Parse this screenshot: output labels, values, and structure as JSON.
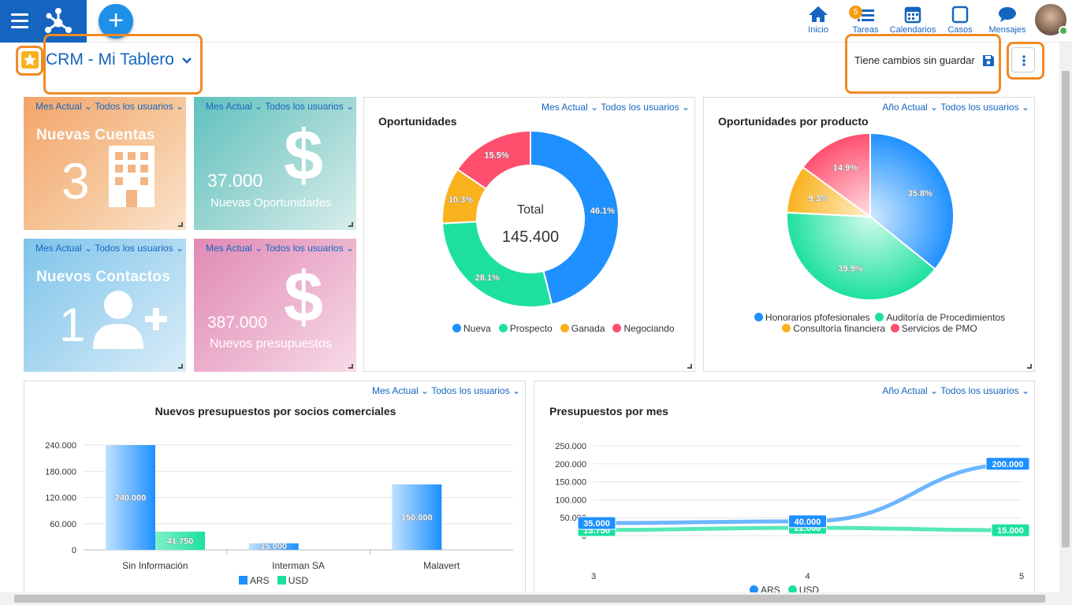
{
  "nav": {
    "home_label": "Inicio",
    "tasks_label": "Tareas",
    "tasks_badge": "5",
    "calendars_label": "Calendarios",
    "cases_label": "Casos",
    "messages_label": "Mensajes",
    "add_label": "+"
  },
  "header": {
    "title": "CRM - Mi Tablero",
    "unsaved_text": "Tiene cambios sin guardar"
  },
  "tiles": [
    {
      "period": "Mes Actual",
      "users": "Todos los usuarios",
      "title": "Nuevas Cuentas",
      "value": "3",
      "caption": ""
    },
    {
      "period": "Mes Actual",
      "users": "Todos los usuarios",
      "title": "",
      "value": "37.000",
      "caption": "Nuevas Oportunidades"
    },
    {
      "period": "Mes Actual",
      "users": "Todos los usuarios",
      "title": "Nuevos Contactos",
      "value": "1",
      "caption": ""
    },
    {
      "period": "Mes Actual",
      "users": "Todos los usuarios",
      "title": "",
      "value": "387.000",
      "caption": "Nuevos presupuestos"
    }
  ],
  "opp_card": {
    "period": "Mes Actual",
    "users": "Todos los usuarios",
    "title": "Oportunidades",
    "center_label": "Total",
    "center_value": "145.400",
    "legend": [
      "Nueva",
      "Prospecto",
      "Ganada",
      "Negociando"
    ]
  },
  "prod_card": {
    "period": "Año Actual",
    "users": "Todos los usuarios",
    "title": "Oportunidades por producto",
    "legend": [
      "Honorarios pfofesionales",
      "Auditoría de Procedimientos",
      "Consultoría financiera",
      "Servicios de PMO"
    ]
  },
  "partners_card": {
    "period": "Mes Actual",
    "users": "Todos los usuarios",
    "title": "Nuevos presupuestos por socios comerciales",
    "legend": [
      "ARS",
      "USD"
    ]
  },
  "monthly_card": {
    "period": "Año Actual",
    "users": "Todos los usuarios",
    "title": "Presupuestos por mes",
    "legend": [
      "ARS",
      "USD"
    ]
  },
  "colors": {
    "blue": "#1e90ff",
    "green": "#1de0a0",
    "orange": "#f9b21e",
    "red": "#ff4f6e",
    "brand": "#1565c0",
    "highlight": "#f08a24"
  },
  "chart_data": [
    {
      "type": "pie",
      "title": "Oportunidades",
      "categories": [
        "Nueva",
        "Prospecto",
        "Ganada",
        "Negociando"
      ],
      "values": [
        46.1,
        28.1,
        10.3,
        15.5
      ],
      "labels": [
        "46.1%",
        "28.1%",
        "10.3%",
        "15.5%"
      ],
      "center_text": [
        "Total",
        "145.400"
      ],
      "donut": true,
      "legend": "bottom"
    },
    {
      "type": "pie",
      "title": "Oportunidades por producto",
      "categories": [
        "Honorarios pfofesionales",
        "Auditoría de Procedimientos",
        "Consultoría financiera",
        "Servicios de PMO"
      ],
      "values": [
        35.8,
        39.9,
        9.3,
        14.9
      ],
      "labels": [
        "35.8%",
        "39.9%",
        "9.3%",
        "14.9%"
      ],
      "legend": "bottom"
    },
    {
      "type": "bar",
      "title": "Nuevos presupuestos por socios comerciales",
      "categories": [
        "Sin Información",
        "Interman SA",
        "Malavert"
      ],
      "series": [
        {
          "name": "ARS",
          "values": [
            240000,
            15000,
            150000
          ],
          "labels": [
            "240.000",
            "15.000",
            "150.000"
          ]
        },
        {
          "name": "USD",
          "values": [
            41750,
            0,
            0
          ],
          "labels": [
            "41.750",
            "",
            ""
          ]
        }
      ],
      "yticks": [
        "0",
        "60.000",
        "120.000",
        "180.000",
        "240.000"
      ],
      "ylim": [
        0,
        240000
      ],
      "grid": true,
      "legend": "bottom"
    },
    {
      "type": "line",
      "title": "Presupuestos por mes",
      "x": [
        3,
        4,
        5
      ],
      "xticks": [
        "3",
        "4",
        "5"
      ],
      "series": [
        {
          "name": "ARS",
          "values": [
            35000,
            40000,
            200000
          ],
          "labels": [
            "35.000",
            "40.000",
            "200.000"
          ]
        },
        {
          "name": "USD",
          "values": [
            15750,
            22000,
            15000
          ],
          "labels": [
            "15.750",
            "22.000",
            "15.000"
          ]
        }
      ],
      "yticks": [
        "0",
        "50.000",
        "100.000",
        "150.000",
        "200.000",
        "250.000"
      ],
      "ylim": [
        0,
        250000
      ],
      "grid": true,
      "legend": "bottom"
    }
  ]
}
